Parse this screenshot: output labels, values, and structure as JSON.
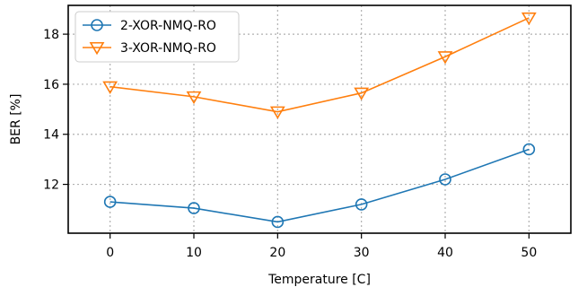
{
  "chart_data": {
    "type": "line",
    "title": "",
    "xlabel": "Temperature [C]",
    "ylabel": "BER [%]",
    "x": [
      0,
      10,
      20,
      30,
      40,
      50
    ],
    "xlim": [
      -5,
      55
    ],
    "ylim": [
      10.05,
      19.15
    ],
    "xticks": [
      0,
      10,
      20,
      30,
      40,
      50
    ],
    "yticks": [
      12,
      14,
      16,
      18
    ],
    "grid": true,
    "legend_position": "top-left",
    "series": [
      {
        "name": "2-XOR-NMQ-RO",
        "values": [
          11.3,
          11.05,
          10.5,
          11.2,
          12.2,
          13.4
        ],
        "color": "#1f77b4",
        "marker": "circle"
      },
      {
        "name": "3-XOR-NMQ-RO",
        "values": [
          15.9,
          15.5,
          14.9,
          15.65,
          17.1,
          18.65
        ],
        "color": "#ff7f0e",
        "marker": "triangle-down"
      }
    ]
  }
}
